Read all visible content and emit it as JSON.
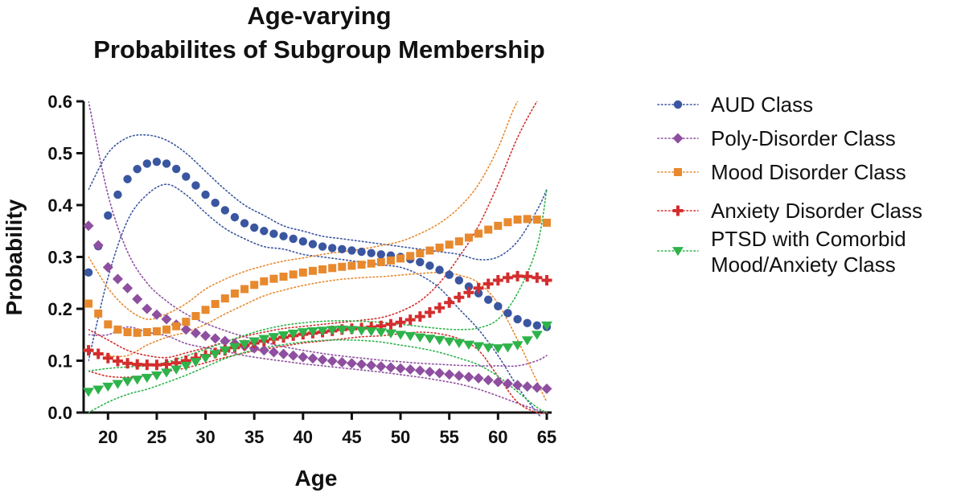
{
  "chart_data": {
    "type": "line",
    "title_lines": [
      "Age-varying",
      "Probabilites of Subgroup Membership"
    ],
    "xlabel": "Age",
    "ylabel": "Probability",
    "xlim": [
      17.5,
      65.5
    ],
    "ylim": [
      0,
      0.6
    ],
    "xticks": [
      20,
      25,
      30,
      35,
      40,
      45,
      50,
      55,
      60,
      65
    ],
    "xtick_labels": [
      "20",
      "25",
      "30",
      "35",
      "40",
      "45",
      "50",
      "55",
      "60",
      "65"
    ],
    "yticks": [
      0,
      0.1,
      0.2,
      0.3,
      0.4,
      0.5,
      0.6
    ],
    "ytick_labels": [
      "0.0",
      "0.1",
      "0.2",
      "0.3",
      "0.4",
      "0.5",
      "0.6"
    ],
    "grid": false,
    "legend_position": "right",
    "x": [
      18,
      20,
      22,
      24,
      26,
      28,
      30,
      32,
      34,
      36,
      38,
      40,
      42,
      44,
      46,
      48,
      50,
      52,
      54,
      56,
      58,
      60,
      62,
      64,
      65
    ],
    "series": [
      {
        "name": "AUD Class",
        "color": "#3a56a0",
        "marker": "circle",
        "values": [
          0.27,
          0.38,
          0.45,
          0.48,
          0.48,
          0.455,
          0.42,
          0.39,
          0.365,
          0.35,
          0.34,
          0.33,
          0.32,
          0.315,
          0.31,
          0.305,
          0.3,
          0.29,
          0.275,
          0.255,
          0.23,
          0.205,
          0.18,
          0.168,
          0.165
        ],
        "ci_upper": [
          0.43,
          0.5,
          0.53,
          0.535,
          0.525,
          0.5,
          0.465,
          0.43,
          0.4,
          0.38,
          0.36,
          0.35,
          0.34,
          0.335,
          0.33,
          0.325,
          0.32,
          0.315,
          0.31,
          0.305,
          0.295,
          0.3,
          0.33,
          0.39,
          0.43
        ],
        "ci_lower": [
          0.1,
          0.26,
          0.37,
          0.42,
          0.44,
          0.42,
          0.385,
          0.355,
          0.335,
          0.32,
          0.315,
          0.305,
          0.3,
          0.295,
          0.29,
          0.285,
          0.28,
          0.265,
          0.24,
          0.2,
          0.16,
          0.11,
          0.05,
          0.0,
          -0.02
        ]
      },
      {
        "name": "Poly-Disorder Class",
        "color": "#8e4fa0",
        "marker": "diamond",
        "values": [
          0.36,
          0.28,
          0.24,
          0.2,
          0.18,
          0.16,
          0.148,
          0.138,
          0.128,
          0.12,
          0.113,
          0.107,
          0.102,
          0.097,
          0.093,
          0.089,
          0.085,
          0.081,
          0.076,
          0.071,
          0.066,
          0.059,
          0.053,
          0.048,
          0.046
        ],
        "ci_upper": [
          0.6,
          0.42,
          0.31,
          0.25,
          0.215,
          0.19,
          0.172,
          0.158,
          0.146,
          0.136,
          0.127,
          0.12,
          0.114,
          0.109,
          0.105,
          0.101,
          0.098,
          0.095,
          0.093,
          0.091,
          0.09,
          0.09,
          0.09,
          0.1,
          0.11
        ],
        "ci_lower": [
          0.15,
          0.15,
          0.165,
          0.155,
          0.148,
          0.133,
          0.125,
          0.118,
          0.11,
          0.104,
          0.099,
          0.094,
          0.09,
          0.086,
          0.082,
          0.078,
          0.073,
          0.068,
          0.062,
          0.055,
          0.045,
          0.032,
          0.018,
          0.005,
          0.0
        ]
      },
      {
        "name": "Mood Disorder Class",
        "color": "#e8892e",
        "marker": "square",
        "values": [
          0.21,
          0.17,
          0.155,
          0.155,
          0.16,
          0.175,
          0.198,
          0.22,
          0.238,
          0.253,
          0.262,
          0.27,
          0.276,
          0.281,
          0.285,
          0.29,
          0.297,
          0.307,
          0.318,
          0.33,
          0.345,
          0.36,
          0.372,
          0.372,
          0.366
        ],
        "ci_upper": [
          0.3,
          0.24,
          0.2,
          0.18,
          0.19,
          0.21,
          0.238,
          0.257,
          0.272,
          0.283,
          0.292,
          0.298,
          0.305,
          0.31,
          0.315,
          0.322,
          0.33,
          0.345,
          0.365,
          0.395,
          0.44,
          0.51,
          0.6,
          0.64,
          0.66
        ],
        "ci_lower": [
          0.12,
          0.11,
          0.11,
          0.13,
          0.145,
          0.155,
          0.17,
          0.19,
          0.208,
          0.225,
          0.236,
          0.245,
          0.252,
          0.257,
          0.26,
          0.262,
          0.265,
          0.268,
          0.27,
          0.265,
          0.25,
          0.21,
          0.14,
          0.06,
          0.02
        ]
      },
      {
        "name": "Anxiety Disorder Class",
        "color": "#d42d2d",
        "marker": "plus",
        "values": [
          0.12,
          0.105,
          0.095,
          0.092,
          0.093,
          0.1,
          0.11,
          0.12,
          0.13,
          0.138,
          0.145,
          0.151,
          0.155,
          0.16,
          0.163,
          0.167,
          0.174,
          0.185,
          0.202,
          0.222,
          0.24,
          0.255,
          0.263,
          0.26,
          0.255
        ],
        "ci_upper": [
          0.16,
          0.14,
          0.12,
          0.11,
          0.106,
          0.115,
          0.125,
          0.136,
          0.147,
          0.155,
          0.162,
          0.166,
          0.17,
          0.174,
          0.178,
          0.183,
          0.195,
          0.215,
          0.25,
          0.3,
          0.36,
          0.44,
          0.53,
          0.6,
          0.62
        ],
        "ci_lower": [
          0.08,
          0.07,
          0.068,
          0.072,
          0.079,
          0.086,
          0.096,
          0.106,
          0.115,
          0.122,
          0.128,
          0.134,
          0.138,
          0.142,
          0.146,
          0.148,
          0.152,
          0.155,
          0.152,
          0.142,
          0.12,
          0.07,
          0.02,
          0.0,
          0.0
        ]
      },
      {
        "name": "PTSD with Comorbid\nMood/Anxiety Class",
        "color": "#2eb34a",
        "marker": "triangle-down",
        "values": [
          0.04,
          0.05,
          0.06,
          0.067,
          0.077,
          0.09,
          0.105,
          0.12,
          0.132,
          0.142,
          0.149,
          0.155,
          0.158,
          0.16,
          0.158,
          0.155,
          0.15,
          0.145,
          0.14,
          0.134,
          0.128,
          0.124,
          0.13,
          0.15,
          0.168
        ],
        "ci_upper": [
          0.08,
          0.085,
          0.088,
          0.09,
          0.097,
          0.109,
          0.122,
          0.136,
          0.149,
          0.16,
          0.168,
          0.173,
          0.176,
          0.177,
          0.176,
          0.174,
          0.17,
          0.166,
          0.162,
          0.16,
          0.163,
          0.18,
          0.23,
          0.32,
          0.43
        ],
        "ci_lower": [
          0.0,
          0.02,
          0.035,
          0.045,
          0.058,
          0.072,
          0.088,
          0.104,
          0.116,
          0.125,
          0.131,
          0.136,
          0.139,
          0.14,
          0.139,
          0.136,
          0.13,
          0.124,
          0.116,
          0.105,
          0.092,
          0.07,
          0.04,
          0.01,
          0.0
        ]
      }
    ]
  }
}
